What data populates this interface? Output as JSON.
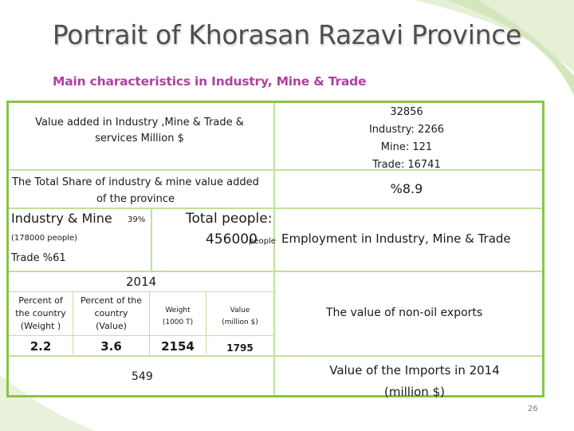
{
  "title": "Portrait of Khorasan Razavi Province",
  "subtitle": "Main characteristics in Industry, Mine & Trade",
  "row_value_added": {
    "label_line1": "Value added in Industry ,Mine & Trade &",
    "label_line2": "services Million $",
    "total": "32856",
    "industry": "Industry: 2266",
    "mine": "Mine: 121",
    "trade": "Trade: 16741"
  },
  "row_share": {
    "label_line1": "The Total Share of  industry & mine  value added",
    "label_line2": "of the province",
    "value": "%8.9"
  },
  "row_employment": {
    "industry_mine": "Industry & Mine",
    "industry_mine_pct": "39%",
    "industry_mine_people": "(178000 people)",
    "trade": "Trade %61",
    "total_label": "Total people:",
    "total_value": "456000",
    "total_unit": "people",
    "label": "Employment in Industry, Mine & Trade"
  },
  "row_exports": {
    "year": "2014",
    "pct_weight_line1": "Percent of",
    "pct_weight_line2": "the country",
    "pct_weight_line3": "(Weight )",
    "pct_weight_value": "2.2",
    "pct_value_line1": "Percent of the",
    "pct_value_line2": "country",
    "pct_value_line3": "(Value)",
    "pct_value_value": "3.6",
    "weight_line1": "Weight",
    "weight_line2": "(1000 T)",
    "weight_value": "2154",
    "value_line1": "Value",
    "value_line2": "(million $)",
    "value_value": "1795",
    "label": "The value of non-oil exports"
  },
  "row_imports": {
    "value": "549",
    "label_line1": "Value of the Imports in 2014",
    "label_line2": "(million $)"
  },
  "page_number": "26",
  "colors": {
    "title": "#4e4e4e",
    "subtitle": "#b23fa0",
    "frame_border": "#8bc34a",
    "grid_lines": "#bfe19a",
    "swoosh": "#dbe9c6"
  }
}
